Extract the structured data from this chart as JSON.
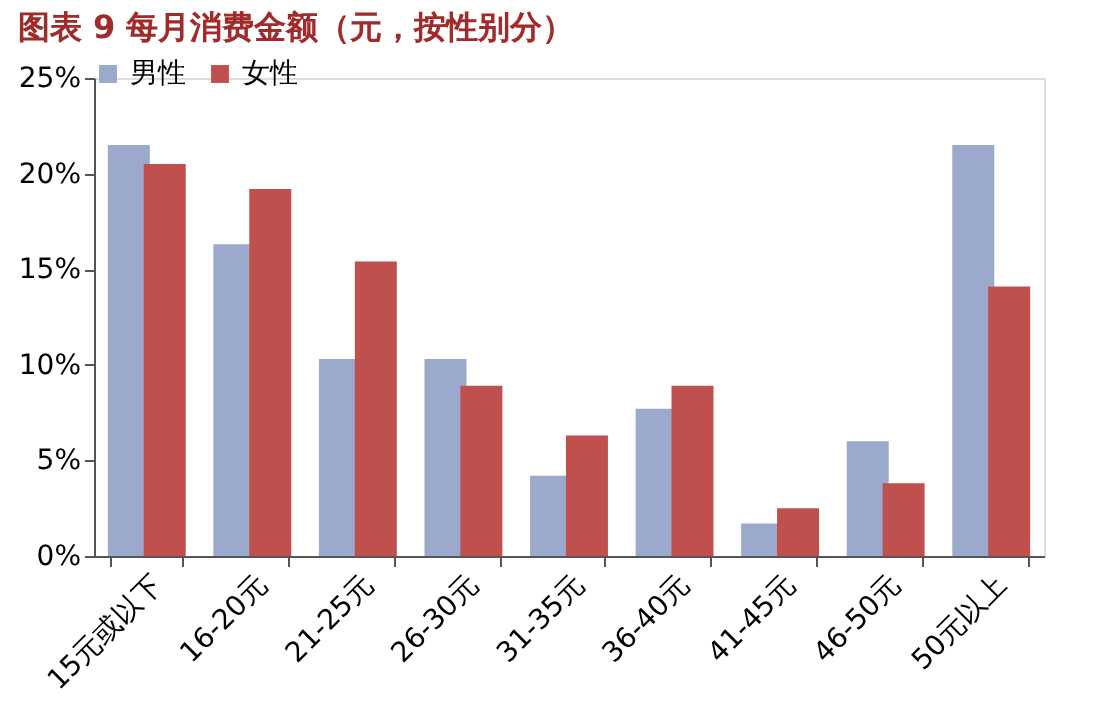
{
  "chart_data": {
    "type": "bar",
    "title": "图表 9  每月消费金额（元，按性别分）",
    "categories": [
      "15元或以下",
      "16-20元",
      "21-25元",
      "26-30元",
      "31-35元",
      "36-40元",
      "41-45元",
      "46-50元",
      "50元以上"
    ],
    "series": [
      {
        "name": "男性",
        "color": "#9aa9cc",
        "values": [
          21.5,
          16.3,
          10.3,
          10.3,
          4.2,
          7.7,
          1.7,
          6.0,
          21.5
        ]
      },
      {
        "name": "女性",
        "color": "#c0504d",
        "values": [
          20.5,
          19.2,
          15.4,
          8.9,
          6.3,
          8.9,
          2.5,
          3.8,
          14.1
        ]
      }
    ],
    "ylim": [
      0,
      25
    ],
    "yticks": [
      {
        "value": 0,
        "label": "0%"
      },
      {
        "value": 5,
        "label": "5%"
      },
      {
        "value": 10,
        "label": "10%"
      },
      {
        "value": 15,
        "label": "15%"
      },
      {
        "value": 20,
        "label": "20%"
      },
      {
        "value": 25,
        "label": "25%"
      }
    ],
    "grid": false,
    "legend": "top"
  }
}
